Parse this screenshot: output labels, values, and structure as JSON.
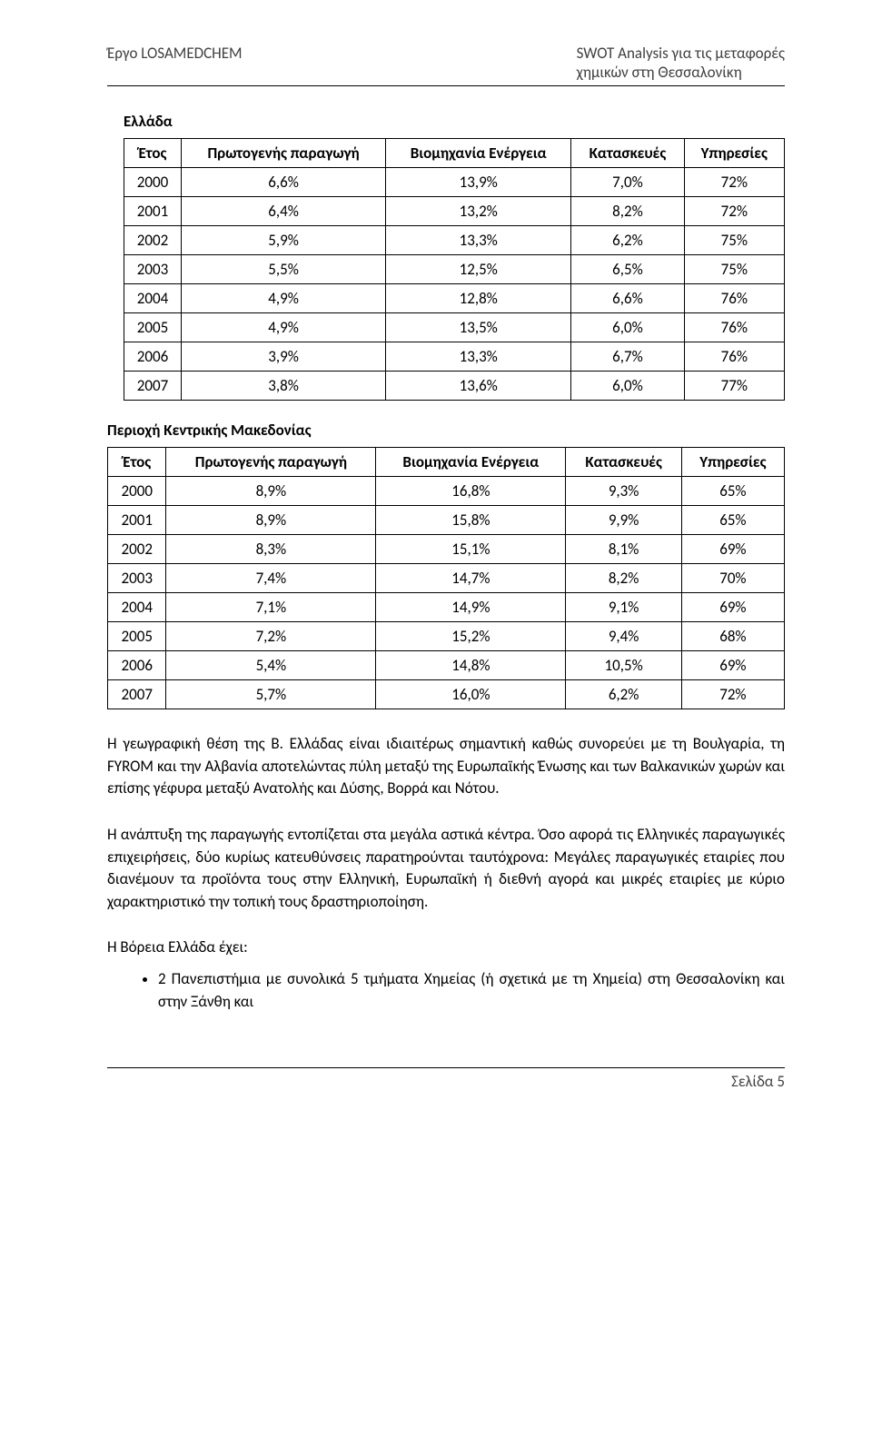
{
  "header": {
    "left": "Έργο LOSAMEDCHEM",
    "right_line1": "SWOT Analysis για τις μεταφορές",
    "right_line2": "χημικών στη Θεσσαλονίκη"
  },
  "table1": {
    "title": "Ελλάδα",
    "columns": [
      "Έτος",
      "Πρωτογενής παραγωγή",
      "Βιομηχανία Ενέργεια",
      "Κατασκευές",
      "Υπηρεσίες"
    ],
    "rows": [
      [
        "2000",
        "6,6%",
        "13,9%",
        "7,0%",
        "72%"
      ],
      [
        "2001",
        "6,4%",
        "13,2%",
        "8,2%",
        "72%"
      ],
      [
        "2002",
        "5,9%",
        "13,3%",
        "6,2%",
        "75%"
      ],
      [
        "2003",
        "5,5%",
        "12,5%",
        "6,5%",
        "75%"
      ],
      [
        "2004",
        "4,9%",
        "12,8%",
        "6,6%",
        "76%"
      ],
      [
        "2005",
        "4,9%",
        "13,5%",
        "6,0%",
        "76%"
      ],
      [
        "2006",
        "3,9%",
        "13,3%",
        "6,7%",
        "76%"
      ],
      [
        "2007",
        "3,8%",
        "13,6%",
        "6,0%",
        "77%"
      ]
    ]
  },
  "table2": {
    "title": "Περιοχή Κεντρικής Μακεδονίας",
    "columns": [
      "Έτος",
      "Πρωτογενής παραγωγή",
      "Βιομηχανία Ενέργεια",
      "Κατασκευές",
      "Υπηρεσίες"
    ],
    "rows": [
      [
        "2000",
        "8,9%",
        "16,8%",
        "9,3%",
        "65%"
      ],
      [
        "2001",
        "8,9%",
        "15,8%",
        "9,9%",
        "65%"
      ],
      [
        "2002",
        "8,3%",
        "15,1%",
        "8,1%",
        "69%"
      ],
      [
        "2003",
        "7,4%",
        "14,7%",
        "8,2%",
        "70%"
      ],
      [
        "2004",
        "7,1%",
        "14,9%",
        "9,1%",
        "69%"
      ],
      [
        "2005",
        "7,2%",
        "15,2%",
        "9,4%",
        "68%"
      ],
      [
        "2006",
        "5,4%",
        "14,8%",
        "10,5%",
        "69%"
      ],
      [
        "2007",
        "5,7%",
        "16,0%",
        "6,2%",
        "72%"
      ]
    ]
  },
  "paragraphs": {
    "p1": "Η γεωγραφική θέση της Β. Ελλάδας είναι ιδιαιτέρως σημαντική καθώς συνορεύει με τη Βουλγαρία, τη FYROM και την Αλβανία αποτελώντας πύλη μεταξύ της Ευρωπαϊκής Ένωσης και των Βαλκανικών χωρών και επίσης γέφυρα μεταξύ Ανατολής και Δύσης, Βορρά και Νότου.",
    "p2": "Η ανάπτυξη της παραγωγής εντοπίζεται στα μεγάλα αστικά κέντρα. Όσο αφορά τις Ελληνικές παραγωγικές επιχειρήσεις, δύο κυρίως κατευθύνσεις παρατηρούνται ταυτόχρονα: Μεγάλες παραγωγικές εταιρίες που διανέμουν τα προϊόντα τους στην Ελληνική, Ευρωπαϊκή ή διεθνή αγορά και μικρές εταιρίες με κύριο χαρακτηριστικό την τοπική τους δραστηριοποίηση.",
    "p3": "Η Βόρεια Ελλάδα έχει:"
  },
  "bullets": {
    "b1": "2 Πανεπιστήμια με συνολικά 5 τμήματα Χημείας (ή σχετικά με τη Χημεία) στη Θεσσαλονίκη και στην Ξάνθη και"
  },
  "footer": {
    "text": "Σελίδα 5"
  }
}
